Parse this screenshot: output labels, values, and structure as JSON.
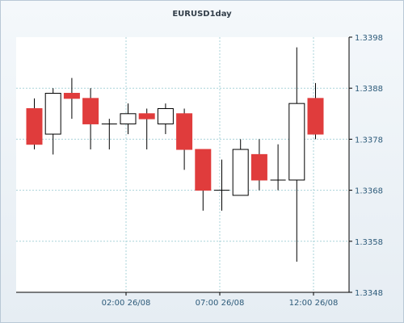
{
  "chart_data": {
    "type": "candlestick",
    "title": "EURUSD1day",
    "xlabel": "",
    "ylabel": "",
    "ylim": [
      1.3348,
      1.3398
    ],
    "y_ticks": [
      "1.3398",
      "1.3388",
      "1.3378",
      "1.3368",
      "1.3358",
      "1.3348"
    ],
    "x_ticks": [
      "02:00 26/08",
      "07:00 26/08",
      "12:00 26/08"
    ],
    "grid": true,
    "colors": {
      "bullish_fill": "#ffffff",
      "bearish_fill": "#e03c3c",
      "outline": "#000000",
      "grid": "#a9d3d9"
    },
    "candles": [
      {
        "open": 1.3384,
        "high": 1.3386,
        "low": 1.3376,
        "close": 1.3377
      },
      {
        "open": 1.3379,
        "high": 1.3388,
        "low": 1.3375,
        "close": 1.3387
      },
      {
        "open": 1.3387,
        "high": 1.339,
        "low": 1.3382,
        "close": 1.3386
      },
      {
        "open": 1.3386,
        "high": 1.3388,
        "low": 1.3376,
        "close": 1.3381
      },
      {
        "open": 1.3381,
        "high": 1.3382,
        "low": 1.3376,
        "close": 1.3381
      },
      {
        "open": 1.3381,
        "high": 1.3385,
        "low": 1.3379,
        "close": 1.3383
      },
      {
        "open": 1.3383,
        "high": 1.3384,
        "low": 1.3376,
        "close": 1.3382
      },
      {
        "open": 1.3381,
        "high": 1.3385,
        "low": 1.3379,
        "close": 1.3384
      },
      {
        "open": 1.3383,
        "high": 1.3384,
        "low": 1.3372,
        "close": 1.3376
      },
      {
        "open": 1.3376,
        "high": 1.3376,
        "low": 1.3364,
        "close": 1.3368
      },
      {
        "open": 1.3368,
        "high": 1.3374,
        "low": 1.3364,
        "close": 1.3368
      },
      {
        "open": 1.3367,
        "high": 1.3378,
        "low": 1.3367,
        "close": 1.3376
      },
      {
        "open": 1.3375,
        "high": 1.3378,
        "low": 1.3368,
        "close": 1.337
      },
      {
        "open": 1.337,
        "high": 1.3377,
        "low": 1.3368,
        "close": 1.337
      },
      {
        "open": 1.337,
        "high": 1.3396,
        "low": 1.3354,
        "close": 1.3385
      },
      {
        "open": 1.3386,
        "high": 1.3389,
        "low": 1.3378,
        "close": 1.3379
      }
    ]
  }
}
